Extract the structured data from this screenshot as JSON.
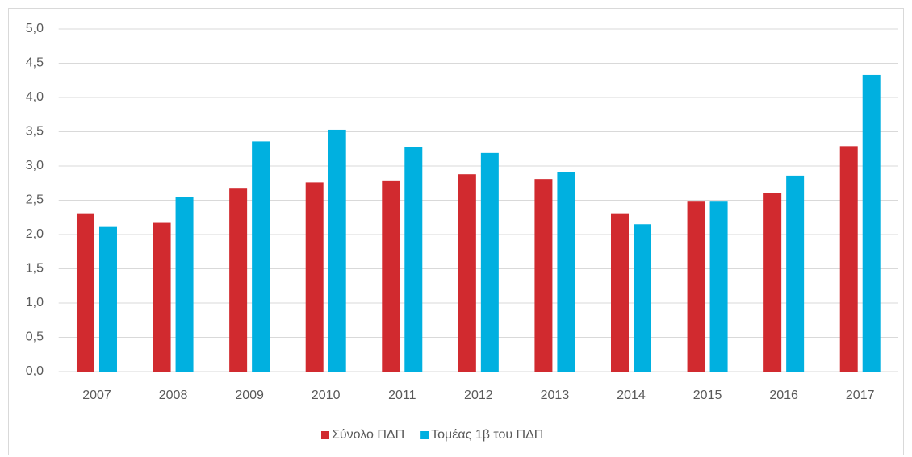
{
  "chart_data": {
    "type": "bar",
    "categories": [
      "2007",
      "2008",
      "2009",
      "2010",
      "2011",
      "2012",
      "2013",
      "2014",
      "2015",
      "2016",
      "2017"
    ],
    "series": [
      {
        "name": "Σύνολο ΠΔΠ",
        "color": "#d12a2f",
        "values": [
          2.31,
          2.17,
          2.68,
          2.76,
          2.79,
          2.88,
          2.81,
          2.31,
          2.48,
          2.61,
          3.29
        ]
      },
      {
        "name": "Τομέας 1β του ΠΔΠ",
        "color": "#00b0e0",
        "values": [
          2.11,
          2.55,
          3.36,
          3.53,
          3.28,
          3.19,
          2.91,
          2.15,
          2.48,
          2.86,
          4.33
        ]
      }
    ],
    "ylim": [
      0,
      5
    ],
    "yticks": [
      {
        "value": 0,
        "label": "0,0"
      },
      {
        "value": 0.5,
        "label": "0,5"
      },
      {
        "value": 1,
        "label": "1,0"
      },
      {
        "value": 1.5,
        "label": "1,5"
      },
      {
        "value": 2,
        "label": "2,0"
      },
      {
        "value": 2.5,
        "label": "2,5"
      },
      {
        "value": 3,
        "label": "3,0"
      },
      {
        "value": 3.5,
        "label": "3,5"
      },
      {
        "value": 4,
        "label": "4,0"
      },
      {
        "value": 4.5,
        "label": "4,5"
      },
      {
        "value": 5,
        "label": "5,0"
      }
    ],
    "grid": true,
    "legend": "bottom"
  }
}
